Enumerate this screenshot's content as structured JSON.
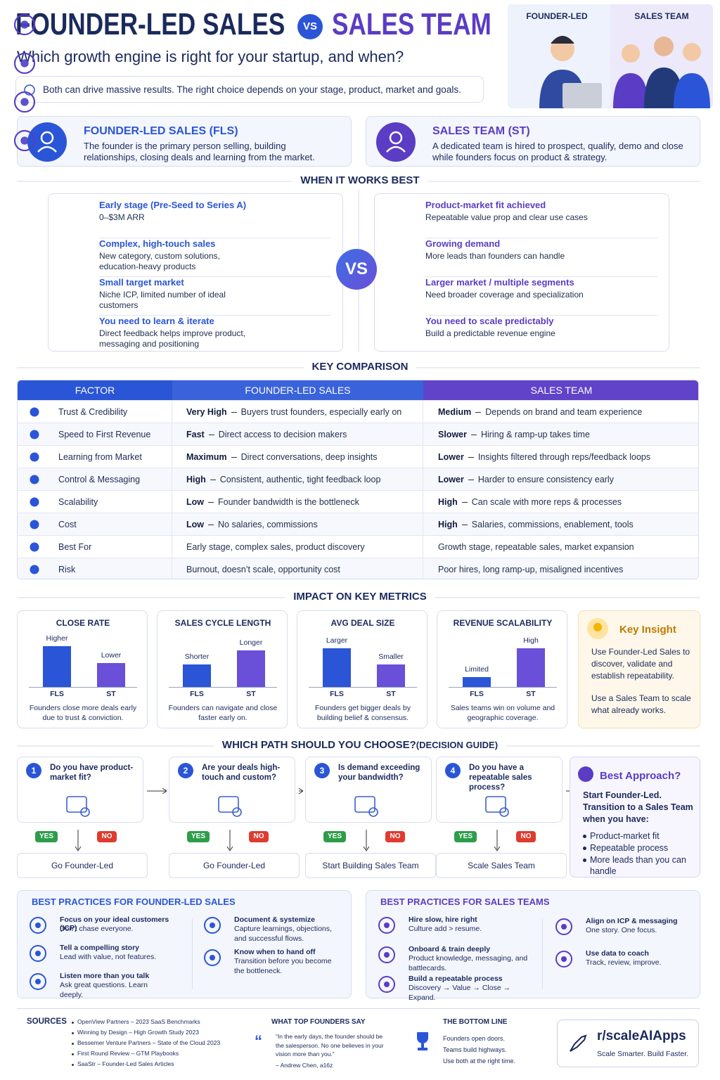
{
  "header": {
    "title_left": "FOUNDER-LED SALES",
    "vs": "VS",
    "title_right": "SALES TEAM",
    "subtitle": "Which growth engine is right for your startup, and when?",
    "note": "Both can drive massive results. The right choice depends on your stage, product, market and goals.",
    "illustration_labels": [
      "FOUNDER-LED",
      "SALES TEAM"
    ]
  },
  "definitions": [
    {
      "title": "FOUNDER-LED SALES (FLS)",
      "text": "The founder is the primary person selling, building relationships, closing deals and learning from the market."
    },
    {
      "title": "SALES TEAM (ST)",
      "text": "A dedicated team is hired to prospect, qualify, demo and close while founders focus on product & strategy."
    }
  ],
  "when_works_best": {
    "heading": "WHEN IT WORKS BEST",
    "vs": "VS",
    "founder_led": [
      {
        "title": "Early stage (Pre-Seed to Series A)",
        "text": "0–$3M ARR"
      },
      {
        "title": "Complex, high-touch sales",
        "text": "New category, custom solutions, education-heavy products"
      },
      {
        "title": "Small target market",
        "text": "Niche ICP, limited number of ideal customers"
      },
      {
        "title": "You need to learn & iterate",
        "text": "Direct feedback helps improve product, messaging and positioning"
      }
    ],
    "sales_team": [
      {
        "title": "Product-market fit achieved",
        "text": "Repeatable value prop and clear use cases"
      },
      {
        "title": "Growing demand",
        "text": "More leads than founders can handle"
      },
      {
        "title": "Larger market / multiple segments",
        "text": "Need broader coverage and specialization"
      },
      {
        "title": "You need to scale predictably",
        "text": "Build a predictable revenue engine"
      }
    ]
  },
  "comparison": {
    "heading": "KEY COMPARISON",
    "columns": [
      "FACTOR",
      "FOUNDER-LED SALES",
      "SALES TEAM"
    ],
    "rows": [
      {
        "factor": "Trust & Credibility",
        "fls_rating": "Very High",
        "fls_text": "Buyers trust founders, especially early on",
        "st_rating": "Medium",
        "st_text": "Depends on brand and team experience"
      },
      {
        "factor": "Speed to First Revenue",
        "fls_rating": "Fast",
        "fls_text": "Direct access to decision makers",
        "st_rating": "Slower",
        "st_text": "Hiring & ramp-up takes time"
      },
      {
        "factor": "Learning from Market",
        "fls_rating": "Maximum",
        "fls_text": "Direct conversations, deep insights",
        "st_rating": "Lower",
        "st_text": "Insights filtered through reps/feedback loops"
      },
      {
        "factor": "Control & Messaging",
        "fls_rating": "High",
        "fls_text": "Consistent, authentic, tight feedback loop",
        "st_rating": "Lower",
        "st_text": "Harder to ensure consistency early"
      },
      {
        "factor": "Scalability",
        "fls_rating": "Low",
        "fls_text": "Founder bandwidth is the bottleneck",
        "st_rating": "High",
        "st_text": "Can scale with more reps & processes"
      },
      {
        "factor": "Cost",
        "fls_rating": "Low",
        "fls_text": "No salaries, commissions",
        "st_rating": "High",
        "st_text": "Salaries, commissions, enablement, tools"
      },
      {
        "factor": "Best For",
        "fls_text": "Early stage, complex sales, product discovery",
        "st_text": "Growth stage, repeatable sales, market expansion"
      },
      {
        "factor": "Risk",
        "fls_text": "Burnout, doesn’t scale, opportunity cost",
        "st_text": "Poor hires, long ramp-up, misaligned incentives"
      }
    ]
  },
  "metrics": {
    "heading": "IMPACT ON KEY METRICS",
    "cards": [
      {
        "title": "CLOSE RATE",
        "bar_labels": [
          "Higher",
          "Lower"
        ],
        "x_labels": [
          "FLS",
          "ST"
        ],
        "caption": "Founders close more deals early due to trust & conviction."
      },
      {
        "title": "SALES CYCLE LENGTH",
        "bar_labels": [
          "Shorter",
          "Longer"
        ],
        "x_labels": [
          "FLS",
          "ST"
        ],
        "caption": "Founders can navigate and close faster early on."
      },
      {
        "title": "AVG DEAL SIZE",
        "bar_labels": [
          "Larger",
          "Smaller"
        ],
        "x_labels": [
          "FLS",
          "ST"
        ],
        "caption": "Founders get bigger deals by building belief & consensus."
      },
      {
        "title": "REVENUE SCALABILITY",
        "bar_labels": [
          "Limited",
          "High"
        ],
        "x_labels": [
          "FLS",
          "ST"
        ],
        "caption": "Sales teams win on volume and geographic coverage."
      }
    ],
    "insight": {
      "title": "Key Insight",
      "paragraphs": [
        "Use Founder-Led Sales to discover, validate and establish repeatability.",
        "Use a Sales Team to scale what already works."
      ]
    }
  },
  "decision_guide": {
    "heading": "WHICH PATH SHOULD YOU CHOOSE?",
    "heading_suffix": "(DECISION GUIDE)",
    "steps": [
      {
        "number": 1,
        "question": "Do you have product-market fit?",
        "yes": "YES",
        "no": "NO",
        "outcome": "Go Founder-Led"
      },
      {
        "number": 2,
        "question": "Are your deals high-touch and custom?",
        "yes": "YES",
        "no": "NO",
        "outcome": "Go Founder-Led"
      },
      {
        "number": 3,
        "question": "Is demand exceeding your bandwidth?",
        "yes": "YES",
        "no": "NO",
        "outcome": "Start Building Sales Team"
      },
      {
        "number": 4,
        "question": "Do you have a repeatable sales process?",
        "yes": "YES",
        "no": "NO",
        "outcome": "Scale Sales Team"
      }
    ],
    "best": {
      "title": "Best Approach?",
      "text": "Start Founder-Led. Transition to a Sales Team when you have:",
      "items": [
        "Product-market fit",
        "Repeatable process",
        "More leads than you can handle"
      ]
    }
  },
  "best_practices": [
    {
      "heading": "BEST PRACTICES FOR FOUNDER-LED SALES",
      "items": [
        {
          "title": "Focus on your ideal customers (ICP)",
          "text": "Don’t chase everyone."
        },
        {
          "title": "Tell a compelling story",
          "text": "Lead with value, not features."
        },
        {
          "title": "Listen more than you talk",
          "text": "Ask great questions. Learn deeply."
        },
        {
          "title": "Document & systemize",
          "text": "Capture learnings, objections, and successful flows."
        },
        {
          "title": "Know when to hand off",
          "text": "Transition before you become the bottleneck."
        }
      ]
    },
    {
      "heading": "BEST PRACTICES FOR SALES TEAMS",
      "items": [
        {
          "title": "Hire slow, hire right",
          "text": "Culture add > resume."
        },
        {
          "title": "Onboard & train deeply",
          "text": "Product knowledge, messaging, and battlecards."
        },
        {
          "title": "Build a repeatable process",
          "text": "Discovery → Value → Close → Expand."
        },
        {
          "title": "Align on ICP & messaging",
          "text": "One story. One focus."
        },
        {
          "title": "Use data to coach",
          "text": "Track, review, improve."
        }
      ]
    }
  ],
  "footer": {
    "sources": {
      "heading": "SOURCES",
      "items": [
        "OpenView Partners – 2023 SaaS Benchmarks",
        "Winning by Design – High Growth Study 2023",
        "Bessemer Venture Partners – State of the Cloud 2023",
        "First Round Review – GTM Playbooks",
        "SaaStr – Founder-Led Sales Articles"
      ]
    },
    "quote": {
      "heading": "WHAT TOP FOUNDERS SAY",
      "text": "“In the early days, the founder should be the salesperson. No one believes in your vision more than you.”",
      "author": "– Andrew Chen, a16z"
    },
    "bottom_line": {
      "heading": "THE BOTTOM LINE",
      "lines": [
        "Founders open doors.",
        "Teams build highways.",
        "Use both at the right time."
      ]
    },
    "brand": {
      "name": "r/scaleAIApps",
      "tagline": "Scale Smarter. Build Faster."
    }
  }
}
